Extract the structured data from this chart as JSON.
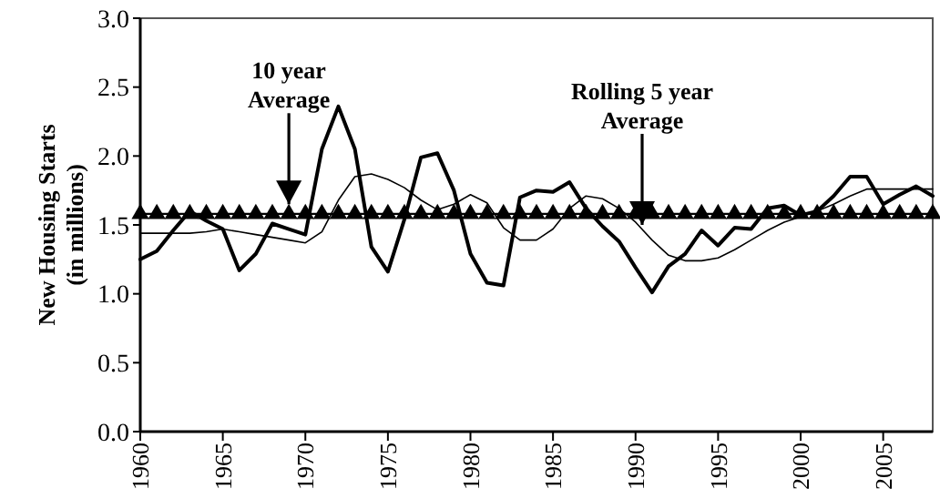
{
  "chart_data": {
    "type": "line",
    "ylabel": "New Housing Starts\n(in millions)",
    "xlim": [
      1960,
      2008
    ],
    "xticks": [
      1960,
      1965,
      1970,
      1975,
      1980,
      1985,
      1990,
      1995,
      2000,
      2005
    ],
    "ylim": [
      0,
      3
    ],
    "yticks": [
      {
        "value": 0,
        "label": "0.0"
      },
      {
        "value": 0.5,
        "label": "0.5"
      },
      {
        "value": 1,
        "label": "1.0"
      },
      {
        "value": 1.5,
        "label": "1.5"
      },
      {
        "value": 2,
        "label": "2.0"
      },
      {
        "value": 2.5,
        "label": "2.5"
      },
      {
        "value": 3,
        "label": "3.0"
      }
    ],
    "grid": false,
    "x": [
      1960,
      1961,
      1962,
      1963,
      1964,
      1965,
      1966,
      1967,
      1968,
      1969,
      1970,
      1971,
      1972,
      1973,
      1974,
      1975,
      1976,
      1977,
      1978,
      1979,
      1980,
      1981,
      1982,
      1983,
      1984,
      1985,
      1986,
      1987,
      1988,
      1989,
      1990,
      1991,
      1992,
      1993,
      1994,
      1995,
      1996,
      1997,
      1998,
      1999,
      2000,
      2001,
      2002,
      2003,
      2004,
      2005,
      2006,
      2007,
      2008
    ],
    "series": [
      {
        "color": "#000000",
        "marker": "none",
        "values": [
          1.25,
          1.31,
          1.46,
          1.6,
          1.53,
          1.47,
          1.17,
          1.29,
          1.51,
          1.47,
          1.43,
          2.05,
          2.36,
          2.05,
          1.34,
          1.16,
          1.54,
          1.99,
          2.02,
          1.75,
          1.29,
          1.08,
          1.06,
          1.7,
          1.75,
          1.74,
          1.81,
          1.62,
          1.49,
          1.38,
          1.19,
          1.01,
          1.2,
          1.29,
          1.46,
          1.35,
          1.48,
          1.47,
          1.62,
          1.64,
          1.57,
          1.6,
          1.71,
          1.85,
          1.85,
          1.65,
          1.72,
          1.78,
          1.71
        ]
      },
      {
        "color": "#000000",
        "marker": "none",
        "values": [
          1.44,
          1.44,
          1.44,
          1.44,
          1.45,
          1.47,
          1.45,
          1.43,
          1.41,
          1.39,
          1.37,
          1.45,
          1.68,
          1.85,
          1.87,
          1.83,
          1.77,
          1.68,
          1.61,
          1.65,
          1.72,
          1.66,
          1.48,
          1.39,
          1.39,
          1.47,
          1.62,
          1.71,
          1.69,
          1.62,
          1.52,
          1.39,
          1.28,
          1.24,
          1.24,
          1.26,
          1.32,
          1.39,
          1.46,
          1.52,
          1.56,
          1.6,
          1.65,
          1.71,
          1.76,
          1.76,
          1.76,
          1.76,
          1.76
        ]
      },
      {
        "color": "#000000",
        "marker": "triangle",
        "values": [
          1.58,
          1.58,
          1.58,
          1.58,
          1.58,
          1.58,
          1.58,
          1.58,
          1.58,
          1.58,
          1.58,
          1.58,
          1.58,
          1.58,
          1.58,
          1.58,
          1.58,
          1.58,
          1.58,
          1.58,
          1.58,
          1.58,
          1.58,
          1.58,
          1.58,
          1.58,
          1.58,
          1.58,
          1.58,
          1.58,
          1.58,
          1.58,
          1.58,
          1.58,
          1.58,
          1.58,
          1.58,
          1.58,
          1.58,
          1.58,
          1.58,
          1.58,
          1.58,
          1.58,
          1.58,
          1.58,
          1.58,
          1.58,
          1.58
        ]
      }
    ],
    "annotations": [
      {
        "text": "10 year\nAverage",
        "x": 1969,
        "y": 1.65
      },
      {
        "text": "Rolling 5 year\nAverage",
        "x": 1990.4,
        "y": 1.5
      }
    ]
  }
}
